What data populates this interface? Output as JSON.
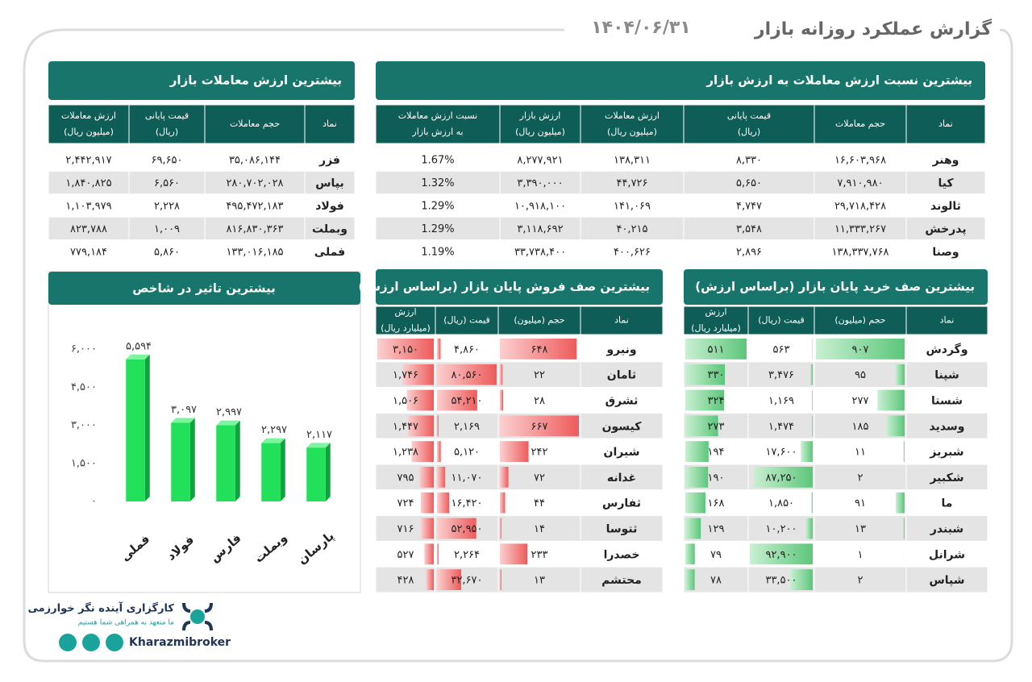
{
  "header": {
    "title": "گزارش عملکرد روزانه بازار",
    "date": "۱۴۰۴/۰۶/۳۱"
  },
  "ratio_table": {
    "title": "بیشترین نسبت ارزش معاملات به ارزش بازار",
    "columns": [
      [
        "نماد"
      ],
      [
        "حجم معاملات"
      ],
      [
        "قیمت پایانی",
        "(ریال)"
      ],
      [
        "ارزش معاملات",
        "(میلیون ریال)"
      ],
      [
        "ارزش بازار",
        "(میلیون ریال)"
      ],
      [
        "نسبت ارزش معاملات",
        "به ارزش بازار"
      ]
    ],
    "rows": [
      [
        "وهنر",
        "۱۶,۶۰۳,۹۶۸",
        "۸,۳۳۰",
        "۱۳۸,۳۱۱",
        "۸,۲۷۷,۹۲۱",
        "1.67%"
      ],
      [
        "کیا",
        "۷,۹۱۰,۹۸۰",
        "۵,۶۵۰",
        "۴۴,۷۲۶",
        "۳,۳۹۰,۰۰۰",
        "1.32%"
      ],
      [
        "ثالوند",
        "۲۹,۷۱۸,۴۲۸",
        "۴,۷۴۷",
        "۱۴۱,۰۶۹",
        "۱۰,۹۱۸,۱۰۰",
        "1.29%"
      ],
      [
        "پدرخش",
        "۱۱,۳۳۳,۲۶۷",
        "۳,۵۴۸",
        "۴۰,۲۱۵",
        "۳,۱۱۸,۶۹۲",
        "1.29%"
      ],
      [
        "وصنا",
        "۱۳۸,۳۳۷,۷۶۸",
        "۲,۸۹۶",
        "۴۰۰,۶۲۶",
        "۳۳,۷۳۸,۴۰۰",
        "1.19%"
      ]
    ]
  },
  "value_table": {
    "title": "بیشترین ارزش معاملات بازار",
    "columns": [
      [
        "نماد"
      ],
      [
        "حجم معاملات"
      ],
      [
        "قیمت پایانی",
        "(ریال)"
      ],
      [
        "ارزش معاملات",
        "(میلیون ریال)"
      ]
    ],
    "rows": [
      [
        "فزر",
        "۳۵,۰۸۶,۱۴۴",
        "۶۹,۶۵۰",
        "۲,۴۴۲,۹۱۷"
      ],
      [
        "بپاس",
        "۲۸۰,۷۰۲,۰۲۸",
        "۶,۵۶۰",
        "۱,۸۴۰,۸۲۵"
      ],
      [
        "فولاد",
        "۴۹۵,۴۷۲,۱۸۳",
        "۲,۲۲۸",
        "۱,۱۰۳,۹۷۹"
      ],
      [
        "وبملت",
        "۸۱۶,۸۳۰,۳۶۳",
        "۱,۰۰۹",
        "۸۲۳,۷۸۸"
      ],
      [
        "فملی",
        "۱۳۳,۰۱۶,۱۸۵",
        "۵,۸۶۰",
        "۷۷۹,۱۸۴"
      ]
    ]
  },
  "impact_chart": {
    "type": "bar",
    "title": "بیشترین تاثیر در شاخص",
    "categories": [
      "فملی",
      "فولاد",
      "فارس",
      "وبملت",
      "پارسان"
    ],
    "values": [
      5594,
      3097,
      2997,
      2297,
      2117
    ],
    "value_labels": [
      "۵,۵۹۴",
      "۳,۰۹۷",
      "۲,۹۹۷",
      "۲,۲۹۷",
      "۲,۱۱۷"
    ],
    "color": "#22e05a",
    "ylim": [
      0,
      6000
    ],
    "yticks": [
      {
        "value": 0,
        "label": "۰"
      },
      {
        "value": 1500,
        "label": "۱,۵۰۰"
      },
      {
        "value": 3000,
        "label": "۳,۰۰۰"
      },
      {
        "value": 4500,
        "label": "۴,۵۰۰"
      },
      {
        "value": 6000,
        "label": "۶,۰۰۰"
      }
    ]
  },
  "sell_table": {
    "title": "بیشترین صف فروش پایان بازار (براساس ارزش)",
    "columns": [
      [
        "نماد"
      ],
      [
        "حجم (میلیون)"
      ],
      [
        "قیمت (ریال)"
      ],
      [
        "ارزش",
        "(میلیارد ریال)"
      ]
    ],
    "rows": [
      [
        "ونیرو",
        "۶۴۸",
        "۴,۸۶۰",
        "۳,۱۵۰"
      ],
      [
        "ثامان",
        "۲۲",
        "۸۰,۵۶۰",
        "۱,۷۴۶"
      ],
      [
        "ثشرق",
        "۲۸",
        "۵۴,۲۱۰",
        "۱,۵۰۶"
      ],
      [
        "کیسون",
        "۶۶۷",
        "۲,۱۶۹",
        "۱,۴۴۷"
      ],
      [
        "شیران",
        "۲۴۲",
        "۵,۱۲۰",
        "۱,۲۳۸"
      ],
      [
        "غدانه",
        "۷۲",
        "۱۱,۰۷۰",
        "۷۹۵"
      ],
      [
        "ثفارس",
        "۴۴",
        "۱۶,۴۲۰",
        "۷۲۴"
      ],
      [
        "ثتوسا",
        "۱۴",
        "۵۲,۹۵۰",
        "۷۱۶"
      ],
      [
        "خصدرا",
        "۲۳۳",
        "۲,۲۶۴",
        "۵۲۷"
      ],
      [
        "محتشم",
        "۱۳",
        "۳۲,۶۷۰",
        "۴۲۸"
      ]
    ]
  },
  "buy_table": {
    "title": "بیشترین صف خرید پایان بازار (براساس ارزش)",
    "columns": [
      [
        "نماد"
      ],
      [
        "حجم (میلیون)"
      ],
      [
        "قیمت (ریال)"
      ],
      [
        "ارزش",
        "(میلیارد ریال)"
      ]
    ],
    "rows": [
      [
        "وگردش",
        "۹۰۷",
        "۵۶۳",
        "۵۱۱"
      ],
      [
        "شپنا",
        "۹۵",
        "۳,۴۷۶",
        "۳۳۰"
      ],
      [
        "شستا",
        "۲۷۷",
        "۱,۱۶۹",
        "۳۲۴"
      ],
      [
        "وسدید",
        "۱۸۵",
        "۱,۴۷۴",
        "۲۷۳"
      ],
      [
        "شبریز",
        "۱۱",
        "۱۷,۶۰۰",
        "۱۹۴"
      ],
      [
        "شکبیر",
        "۲",
        "۸۷,۲۵۰",
        "۱۹۰"
      ],
      [
        "ما",
        "۹۱",
        "۱,۸۵۰",
        "۱۶۸"
      ],
      [
        "شبندر",
        "۱۳",
        "۱۰,۲۰۰",
        "۱۲۹"
      ],
      [
        "شرانل",
        "۱",
        "۹۲,۹۰۰",
        "۷۹"
      ],
      [
        "شپاس",
        "۲",
        "۳۳,۵۰۰",
        "۷۸"
      ]
    ]
  },
  "logo": {
    "name": "کارگزاری آینده نگر خوارزمی",
    "slogan": "ما متعهد به همراهی شما هستیم",
    "site": "Kharazmibroker"
  }
}
